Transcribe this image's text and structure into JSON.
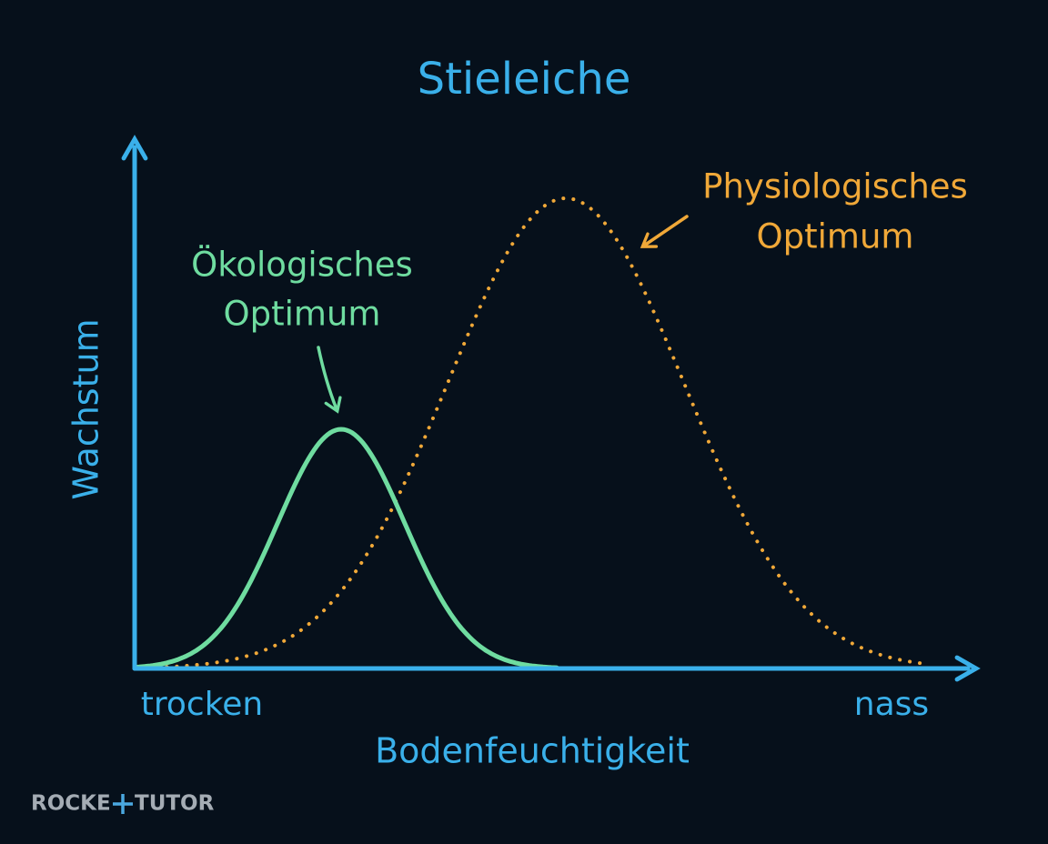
{
  "title": "Stieleiche",
  "y_axis_label": "Wachstum",
  "x_axis_label": "Bodenfeuchtigkeit",
  "x_axis_start": "trocken",
  "x_axis_end": "nass",
  "ecological_label": [
    "Ökologisches",
    "Optimum"
  ],
  "physiological_label": [
    "Physiologisches",
    "Optimum"
  ],
  "watermark": [
    "ROCKE",
    "TUTOR"
  ]
}
